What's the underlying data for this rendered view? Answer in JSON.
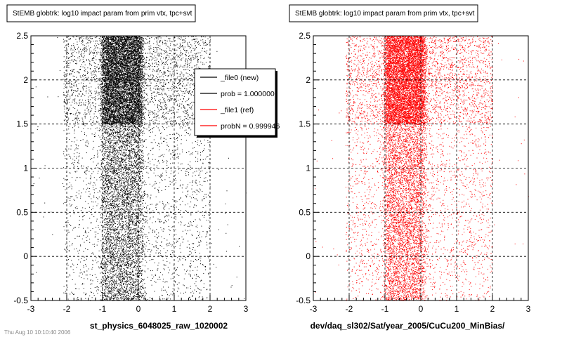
{
  "footer": "Thu Aug 10 10:10:40 2006",
  "chart_data": [
    {
      "type": "scatter",
      "title": "StEMB globtrk: log10 impact param from prim vtx, tpc+svt",
      "xlabel": "st_physics_6048025_raw_1020002",
      "xlim": [
        -3,
        3
      ],
      "ylim": [
        -0.5,
        2.5
      ],
      "xticks": [
        "-3",
        "-2",
        "-1",
        "0",
        "1",
        "2",
        "3"
      ],
      "yticks": [
        "-0.5",
        "0",
        "0.5",
        "1",
        "1.5",
        "2",
        "2.5"
      ],
      "grid": true,
      "point_color": "#000000",
      "density_profile": {
        "x_core_range": [
          -1.0,
          0.1
        ],
        "x_wide_range": [
          -3.0,
          2.0
        ],
        "dense_band_y": [
          1.5,
          2.5
        ],
        "sparse_band_y": [
          -0.5,
          1.5
        ]
      },
      "legend": {
        "placement": "top-right",
        "entries": [
          {
            "label": "_file0 (new)",
            "color": "#000000"
          },
          {
            "label": "prob = 1.000000",
            "color": "#000000"
          },
          {
            "label": "_file1 (ref)",
            "color": "#ff0000"
          },
          {
            "label": "probN = 0.999946",
            "color": "#ff0000"
          }
        ]
      }
    },
    {
      "type": "scatter",
      "title": "StEMB globtrk: log10 impact param from prim vtx, tpc+svt",
      "xlabel": "dev/daq_sl302/Sat/year_2005/CuCu200_MinBias/",
      "xlim": [
        -3,
        3
      ],
      "ylim": [
        -0.5,
        2.5
      ],
      "xticks": [
        "-3",
        "-2",
        "-1",
        "0",
        "1",
        "2",
        "3"
      ],
      "yticks": [
        "-0.5",
        "0",
        "0.5",
        "1",
        "1.5",
        "2",
        "2.5"
      ],
      "grid": true,
      "point_color": "#ff0000",
      "density_profile": {
        "x_core_range": [
          -1.0,
          0.1
        ],
        "x_wide_range": [
          -3.0,
          2.0
        ],
        "dense_band_y": [
          1.5,
          2.5
        ],
        "sparse_band_y": [
          -0.5,
          1.5
        ]
      }
    }
  ]
}
